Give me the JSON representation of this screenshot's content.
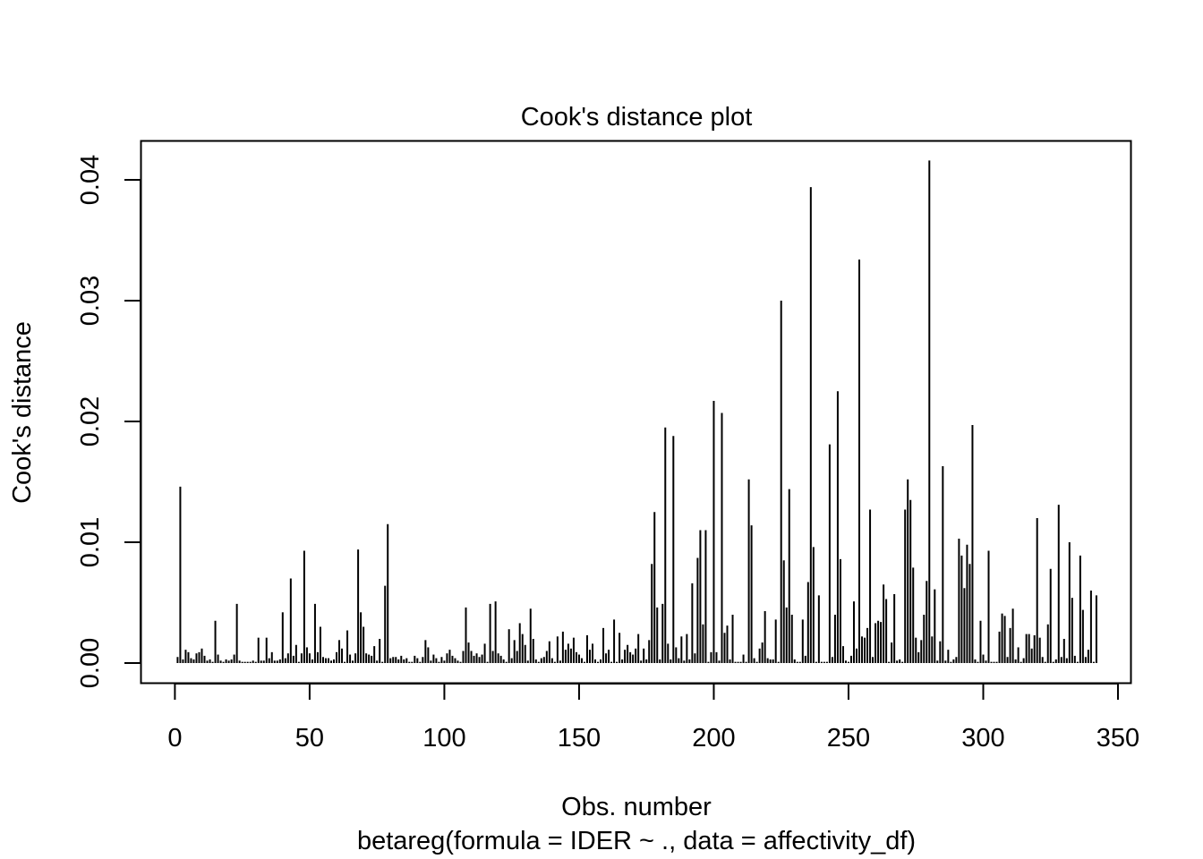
{
  "chart_data": {
    "type": "bar",
    "title": "Cook's distance plot",
    "xlabel": "Obs. number",
    "subtitle": "betareg(formula = IDER ~ ., data = affectivity_df)",
    "ylabel": "Cook's distance",
    "xlim": [
      0,
      350
    ],
    "ylim": [
      0,
      0.042
    ],
    "x_ticks": [
      "0",
      "50",
      "100",
      "150",
      "200",
      "250",
      "300",
      "350"
    ],
    "y_ticks": [
      "0.00",
      "0.01",
      "0.02",
      "0.03",
      "0.04"
    ],
    "x_tick_values": [
      0,
      50,
      100,
      150,
      200,
      250,
      300,
      350
    ],
    "y_tick_values": [
      0,
      0.01,
      0.02,
      0.03,
      0.04
    ],
    "grid": false,
    "x": [
      1,
      2,
      3,
      4,
      5,
      6,
      7,
      8,
      9,
      10,
      11,
      12,
      13,
      14,
      15,
      16,
      17,
      18,
      19,
      20,
      21,
      22,
      23,
      24,
      25,
      26,
      27,
      28,
      29,
      30,
      31,
      32,
      33,
      34,
      35,
      36,
      37,
      38,
      39,
      40,
      41,
      42,
      43,
      44,
      45,
      46,
      47,
      48,
      49,
      50,
      51,
      52,
      53,
      54,
      55,
      56,
      57,
      58,
      59,
      60,
      61,
      62,
      63,
      64,
      65,
      66,
      67,
      68,
      69,
      70,
      71,
      72,
      73,
      74,
      75,
      76,
      77,
      78,
      79,
      80,
      81,
      82,
      83,
      84,
      85,
      86,
      87,
      88,
      89,
      90,
      91,
      92,
      93,
      94,
      95,
      96,
      97,
      98,
      99,
      100,
      101,
      102,
      103,
      104,
      105,
      106,
      107,
      108,
      109,
      110,
      111,
      112,
      113,
      114,
      115,
      116,
      117,
      118,
      119,
      120,
      121,
      122,
      123,
      124,
      125,
      126,
      127,
      128,
      129,
      130,
      131,
      132,
      133,
      134,
      135,
      136,
      137,
      138,
      139,
      140,
      141,
      142,
      143,
      144,
      145,
      146,
      147,
      148,
      149,
      150,
      151,
      152,
      153,
      154,
      155,
      156,
      157,
      158,
      159,
      160,
      161,
      162,
      163,
      164,
      165,
      166,
      167,
      168,
      169,
      170,
      171,
      172,
      173,
      174,
      175,
      176,
      177,
      178,
      179,
      180,
      181,
      182,
      183,
      184,
      185,
      186,
      187,
      188,
      189,
      190,
      191,
      192,
      193,
      194,
      195,
      196,
      197,
      198,
      199,
      200,
      201,
      202,
      203,
      204,
      205,
      206,
      207,
      208,
      209,
      210,
      211,
      212,
      213,
      214,
      215,
      216,
      217,
      218,
      219,
      220,
      221,
      222,
      223,
      224,
      225,
      226,
      227,
      228,
      229,
      230,
      231,
      232,
      233,
      234,
      235,
      236,
      237,
      238,
      239,
      240,
      241,
      242,
      243,
      244,
      245,
      246,
      247,
      248,
      249,
      250,
      251,
      252,
      253,
      254,
      255,
      256,
      257,
      258,
      259,
      260,
      261,
      262,
      263,
      264,
      265,
      266,
      267,
      268,
      269,
      270,
      271,
      272,
      273,
      274,
      275,
      276,
      277,
      278,
      279,
      280,
      281,
      282,
      283,
      284,
      285,
      286,
      287,
      288,
      289,
      290,
      291,
      292,
      293,
      294,
      295,
      296,
      297,
      298,
      299,
      300,
      301,
      302,
      303,
      304,
      305,
      306,
      307,
      308,
      309,
      310,
      311,
      312,
      313,
      314,
      315,
      316,
      317,
      318,
      319,
      320,
      321,
      322,
      323,
      324,
      325,
      326,
      327,
      328,
      329,
      330,
      331,
      332,
      333,
      334,
      335,
      336,
      337,
      338,
      339,
      340,
      341,
      342
    ],
    "values": [
      0.0005,
      0.0146,
      0.0003,
      0.0011,
      0.0009,
      0.0004,
      0.0003,
      0.0008,
      0.0009,
      0.0012,
      0.0006,
      0.0002,
      0.0003,
      0.0001,
      0.0035,
      0.0007,
      0.0002,
      0.0001,
      0.0003,
      0.0002,
      0.0003,
      0.0007,
      0.0049,
      0.0002,
      0.0001,
      0.0001,
      0.0001,
      0.0001,
      0.0002,
      0.0001,
      0.0021,
      0.0002,
      0.0002,
      0.0021,
      0.0004,
      0.0009,
      0.0002,
      0.0002,
      0.0003,
      0.0042,
      0.0004,
      0.0008,
      0.007,
      0.0006,
      0.0015,
      0.0001,
      0.0008,
      0.0093,
      0.0013,
      0.0008,
      0.0003,
      0.0049,
      0.0009,
      0.003,
      0.0005,
      0.0004,
      0.0004,
      0.0002,
      0.0003,
      0.0009,
      0.0019,
      0.0012,
      0.0001,
      0.0027,
      0.0007,
      0.0002,
      0.0008,
      0.0094,
      0.0042,
      0.003,
      0.0008,
      0.0007,
      0.0006,
      0.0014,
      0.0002,
      0.002,
      0.0001,
      0.0064,
      0.0115,
      0.0004,
      0.0005,
      0.0005,
      0.0003,
      0.0006,
      0.0003,
      0.0004,
      0.0001,
      0.0001,
      0.0006,
      0.0004,
      0.0001,
      0.0005,
      0.0019,
      0.0013,
      0.0002,
      0.0007,
      0.0004,
      0.0001,
      0.0005,
      0.0002,
      0.0008,
      0.0011,
      0.0006,
      0.0004,
      0.0002,
      0.0001,
      0.001,
      0.0046,
      0.0017,
      0.001,
      0.0006,
      0.0008,
      0.0005,
      0.0007,
      0.0016,
      0.0001,
      0.0049,
      0.001,
      0.0051,
      0.0008,
      0.0006,
      0.0003,
      0.0001,
      0.0028,
      0.0004,
      0.0019,
      0.001,
      0.0033,
      0.0024,
      0.0015,
      0.0002,
      0.0045,
      0.002,
      0.0003,
      0.0001,
      0.0004,
      0.0005,
      0.001,
      0.0018,
      0.0004,
      0.0001,
      0.0022,
      0.0002,
      0.0026,
      0.0011,
      0.0016,
      0.0012,
      0.0021,
      0.0009,
      0.0007,
      0.0004,
      0.0001,
      0.0023,
      0.0011,
      0.0016,
      0.0003,
      0.0001,
      0.0003,
      0.0029,
      0.0008,
      0.0011,
      0.0001,
      0.0036,
      0.0001,
      0.0025,
      0.0003,
      0.0011,
      0.0015,
      0.0009,
      0.0007,
      0.0012,
      0.0024,
      0.0002,
      0.0012,
      0.0003,
      0.0019,
      0.0082,
      0.0125,
      0.0046,
      0.0003,
      0.0049,
      0.0195,
      0.0016,
      0.0003,
      0.0188,
      0.0013,
      0.0004,
      0.0022,
      0.0002,
      0.0024,
      0.0003,
      0.0066,
      0.0008,
      0.0087,
      0.011,
      0.0032,
      0.011,
      0.0001,
      0.0009,
      0.0217,
      0.0009,
      0.0002,
      0.0207,
      0.0025,
      0.0031,
      0.0003,
      0.004,
      0.0001,
      0.0001,
      0.0001,
      0.0007,
      0.0001,
      0.0152,
      0.0114,
      0.0004,
      0.0001,
      0.0012,
      0.0017,
      0.0043,
      0.0004,
      0.0003,
      0.0003,
      0.0036,
      0.0001,
      0.03,
      0.0085,
      0.0046,
      0.0144,
      0.004,
      0.0003,
      0.0001,
      0.0001,
      0.0036,
      0.0006,
      0.0067,
      0.0394,
      0.0096,
      0.0001,
      0.0056,
      0.0001,
      0.0001,
      0.0001,
      0.0181,
      0.0005,
      0.004,
      0.0225,
      0.0086,
      0.0014,
      0.0002,
      0.0001,
      0.0006,
      0.0051,
      0.0012,
      0.0334,
      0.0022,
      0.0021,
      0.0029,
      0.0127,
      0.0005,
      0.0033,
      0.0035,
      0.0034,
      0.0065,
      0.0053,
      0.0001,
      0.0017,
      0.0057,
      0.0002,
      0.0003,
      0.0001,
      0.0127,
      0.0152,
      0.0135,
      0.0079,
      0.0021,
      0.0009,
      0.0019,
      0.004,
      0.0068,
      0.0416,
      0.0022,
      0.0061,
      0.0002,
      0.0018,
      0.0163,
      0.0002,
      0.0011,
      0.0001,
      0.0003,
      0.0005,
      0.0103,
      0.0089,
      0.0062,
      0.0098,
      0.0082,
      0.0197,
      0.0003,
      0.0001,
      0.0035,
      0.0007,
      0.0002,
      0.0093,
      0.0001,
      0.0001,
      0.0001,
      0.0026,
      0.0041,
      0.0039,
      0.0005,
      0.0029,
      0.0045,
      0.0003,
      0.0013,
      0.0001,
      0.0004,
      0.0024,
      0.0024,
      0.0012,
      0.0023,
      0.012,
      0.0021,
      0.0005,
      0.0001,
      0.0032,
      0.0078,
      0.0001,
      0.0003,
      0.0131,
      0.0005,
      0.002,
      0.0004,
      0.01,
      0.0054,
      0.0006,
      0.0001,
      0.0089,
      0.0044,
      0.0005,
      0.0011,
      0.006,
      0.0001,
      0.0056
    ]
  }
}
